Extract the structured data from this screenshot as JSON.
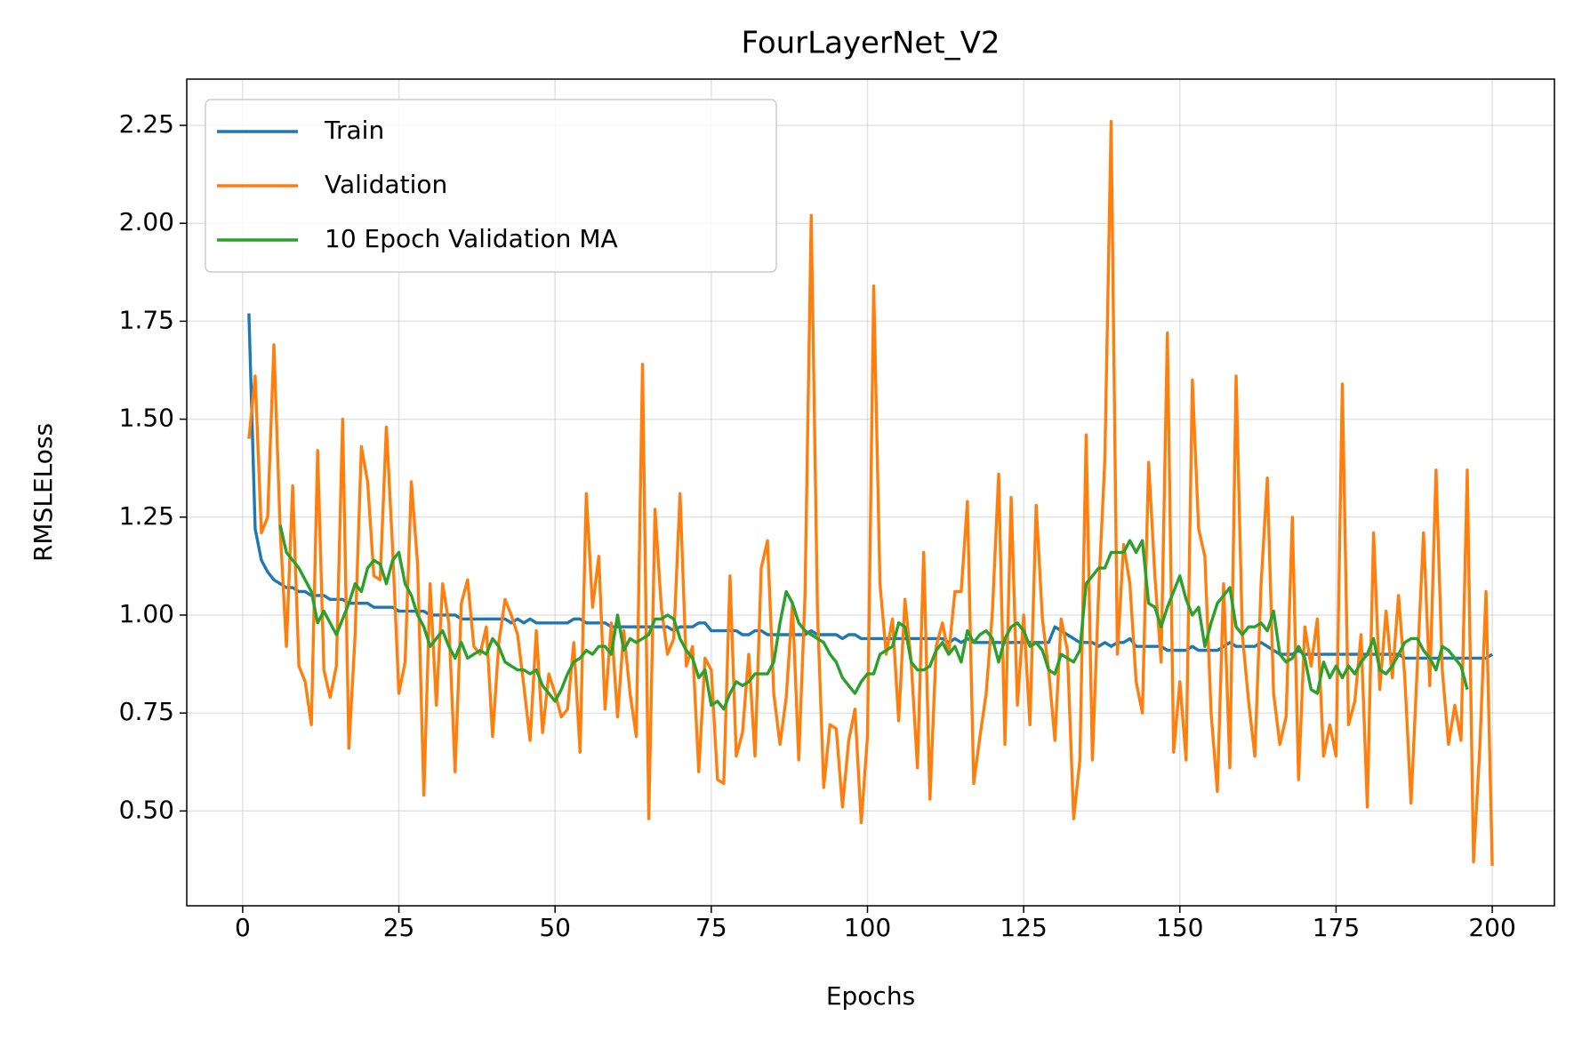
{
  "chart_data": {
    "type": "line",
    "title": "FourLayerNet_V2",
    "x_label": "Epochs",
    "y_label": "RMSLELoss",
    "x": [
      1,
      2,
      3,
      4,
      5,
      6,
      7,
      8,
      9,
      10,
      11,
      12,
      13,
      14,
      15,
      16,
      17,
      18,
      19,
      20,
      21,
      22,
      23,
      24,
      25,
      26,
      27,
      28,
      29,
      30,
      31,
      32,
      33,
      34,
      35,
      36,
      37,
      38,
      39,
      40,
      41,
      42,
      43,
      44,
      45,
      46,
      47,
      48,
      49,
      50,
      51,
      52,
      53,
      54,
      55,
      56,
      57,
      58,
      59,
      60,
      61,
      62,
      63,
      64,
      65,
      66,
      67,
      68,
      69,
      70,
      71,
      72,
      73,
      74,
      75,
      76,
      77,
      78,
      79,
      80,
      81,
      82,
      83,
      84,
      85,
      86,
      87,
      88,
      89,
      90,
      91,
      92,
      93,
      94,
      95,
      96,
      97,
      98,
      99,
      100,
      101,
      102,
      103,
      104,
      105,
      106,
      107,
      108,
      109,
      110,
      111,
      112,
      113,
      114,
      115,
      116,
      117,
      118,
      119,
      120,
      121,
      122,
      123,
      124,
      125,
      126,
      127,
      128,
      129,
      130,
      131,
      132,
      133,
      134,
      135,
      136,
      137,
      138,
      139,
      140,
      141,
      142,
      143,
      144,
      145,
      146,
      147,
      148,
      149,
      150,
      151,
      152,
      153,
      154,
      155,
      156,
      157,
      158,
      159,
      160,
      161,
      162,
      163,
      164,
      165,
      166,
      167,
      168,
      169,
      170,
      171,
      172,
      173,
      174,
      175,
      176,
      177,
      178,
      179,
      180,
      181,
      182,
      183,
      184,
      185,
      186,
      187,
      188,
      189,
      190,
      191,
      192,
      193,
      194,
      195,
      196,
      197,
      198,
      199,
      200
    ],
    "series": [
      {
        "name": "Train",
        "color": "#1f77b4",
        "values": [
          1.77,
          1.22,
          1.14,
          1.11,
          1.09,
          1.08,
          1.07,
          1.07,
          1.06,
          1.06,
          1.05,
          1.05,
          1.05,
          1.04,
          1.04,
          1.04,
          1.03,
          1.03,
          1.03,
          1.03,
          1.02,
          1.02,
          1.02,
          1.02,
          1.01,
          1.01,
          1.01,
          1.01,
          1.01,
          1.0,
          1.0,
          1.0,
          1.0,
          1.0,
          0.99,
          0.99,
          0.99,
          0.99,
          0.99,
          0.99,
          0.99,
          0.99,
          0.98,
          0.99,
          0.98,
          0.99,
          0.98,
          0.98,
          0.98,
          0.98,
          0.98,
          0.98,
          0.99,
          0.99,
          0.98,
          0.98,
          0.98,
          0.98,
          0.97,
          0.97,
          0.97,
          0.97,
          0.97,
          0.97,
          0.97,
          0.97,
          0.97,
          0.97,
          0.96,
          0.97,
          0.97,
          0.97,
          0.98,
          0.98,
          0.96,
          0.96,
          0.96,
          0.96,
          0.96,
          0.95,
          0.95,
          0.96,
          0.96,
          0.95,
          0.95,
          0.95,
          0.95,
          0.95,
          0.95,
          0.95,
          0.96,
          0.95,
          0.95,
          0.95,
          0.95,
          0.94,
          0.95,
          0.95,
          0.94,
          0.94,
          0.94,
          0.94,
          0.94,
          0.94,
          0.94,
          0.94,
          0.94,
          0.94,
          0.94,
          0.94,
          0.94,
          0.94,
          0.93,
          0.94,
          0.93,
          0.94,
          0.93,
          0.93,
          0.93,
          0.93,
          0.93,
          0.93,
          0.93,
          0.93,
          0.93,
          0.93,
          0.93,
          0.93,
          0.93,
          0.97,
          0.96,
          0.95,
          0.94,
          0.93,
          0.93,
          0.93,
          0.92,
          0.93,
          0.92,
          0.93,
          0.93,
          0.94,
          0.92,
          0.92,
          0.92,
          0.92,
          0.92,
          0.91,
          0.91,
          0.91,
          0.91,
          0.92,
          0.91,
          0.91,
          0.91,
          0.91,
          0.92,
          0.93,
          0.92,
          0.92,
          0.92,
          0.92,
          0.93,
          0.92,
          0.91,
          0.9,
          0.9,
          0.9,
          0.91,
          0.9,
          0.9,
          0.9,
          0.9,
          0.9,
          0.9,
          0.9,
          0.9,
          0.9,
          0.9,
          0.9,
          0.9,
          0.9,
          0.9,
          0.9,
          0.9,
          0.89,
          0.89,
          0.89,
          0.89,
          0.89,
          0.89,
          0.89,
          0.89,
          0.89,
          0.89,
          0.89,
          0.89,
          0.89,
          0.89,
          0.9
        ]
      },
      {
        "name": "Validation",
        "color": "#ff7f0e",
        "values": [
          1.45,
          1.61,
          1.21,
          1.25,
          1.69,
          1.22,
          0.92,
          1.33,
          0.87,
          0.83,
          0.72,
          1.42,
          0.86,
          0.79,
          0.87,
          1.5,
          0.66,
          0.95,
          1.43,
          1.34,
          1.1,
          1.09,
          1.48,
          1.17,
          0.8,
          0.88,
          1.34,
          1.13,
          0.54,
          1.08,
          0.77,
          1.08,
          0.98,
          0.6,
          1.03,
          1.09,
          0.92,
          0.9,
          0.97,
          0.69,
          0.93,
          1.04,
          1.0,
          0.95,
          0.82,
          0.68,
          0.96,
          0.7,
          0.85,
          0.8,
          0.74,
          0.76,
          0.93,
          0.65,
          1.31,
          1.02,
          1.15,
          0.76,
          0.98,
          0.74,
          0.96,
          0.8,
          0.69,
          1.64,
          0.48,
          1.27,
          1.02,
          0.9,
          0.94,
          1.31,
          0.87,
          0.92,
          0.6,
          0.89,
          0.86,
          0.58,
          0.57,
          1.1,
          0.64,
          0.7,
          0.9,
          0.64,
          1.12,
          1.19,
          0.8,
          0.67,
          0.79,
          1.03,
          0.63,
          1.05,
          2.02,
          1.01,
          0.56,
          0.72,
          0.71,
          0.51,
          0.68,
          0.76,
          0.47,
          0.69,
          1.84,
          1.08,
          0.9,
          0.99,
          0.73,
          1.04,
          0.88,
          0.61,
          1.16,
          0.53,
          0.92,
          0.98,
          0.9,
          1.06,
          1.06,
          1.29,
          0.57,
          0.69,
          0.8,
          1.01,
          1.36,
          0.67,
          1.3,
          0.77,
          1.0,
          0.72,
          1.28,
          0.99,
          0.86,
          0.68,
          0.99,
          0.91,
          0.48,
          0.63,
          1.46,
          0.63,
          1.06,
          1.4,
          2.26,
          0.9,
          1.18,
          1.08,
          0.83,
          0.75,
          1.39,
          1.1,
          0.88,
          1.72,
          0.65,
          0.83,
          0.63,
          1.6,
          1.22,
          1.15,
          0.75,
          0.55,
          1.08,
          0.61,
          1.61,
          0.95,
          0.78,
          0.64,
          1.08,
          1.35,
          0.8,
          0.67,
          0.74,
          1.25,
          0.58,
          0.97,
          0.87,
          0.99,
          0.64,
          0.72,
          0.64,
          1.59,
          0.72,
          0.78,
          0.95,
          0.51,
          1.21,
          0.81,
          1.01,
          0.84,
          1.05,
          0.84,
          0.52,
          0.87,
          1.21,
          0.82,
          1.37,
          0.86,
          0.67,
          0.77,
          0.68,
          1.37,
          0.37,
          0.66,
          1.06,
          0.36
        ]
      },
      {
        "name": "10 Epoch Validation MA",
        "color": "#2ca02c",
        "values": [
          null,
          null,
          null,
          null,
          null,
          1.23,
          1.16,
          1.14,
          1.12,
          1.09,
          1.06,
          0.98,
          1.01,
          0.98,
          0.95,
          0.99,
          1.03,
          1.08,
          1.06,
          1.12,
          1.14,
          1.13,
          1.08,
          1.14,
          1.16,
          1.08,
          1.05,
          1.0,
          0.97,
          0.92,
          0.94,
          0.96,
          0.92,
          0.89,
          0.93,
          0.89,
          0.9,
          0.91,
          0.9,
          0.94,
          0.92,
          0.88,
          0.87,
          0.86,
          0.86,
          0.85,
          0.86,
          0.82,
          0.8,
          0.78,
          0.81,
          0.85,
          0.88,
          0.89,
          0.91,
          0.9,
          0.92,
          0.92,
          0.9,
          1.0,
          0.91,
          0.94,
          0.93,
          0.94,
          0.95,
          0.99,
          0.99,
          1.0,
          0.99,
          0.94,
          0.91,
          0.89,
          0.84,
          0.86,
          0.77,
          0.78,
          0.76,
          0.8,
          0.83,
          0.82,
          0.83,
          0.85,
          0.85,
          0.85,
          0.88,
          0.98,
          1.06,
          1.03,
          0.98,
          0.96,
          0.95,
          0.94,
          0.93,
          0.9,
          0.88,
          0.84,
          0.82,
          0.8,
          0.83,
          0.85,
          0.85,
          0.9,
          0.91,
          0.92,
          0.98,
          0.97,
          0.88,
          0.86,
          0.86,
          0.87,
          0.91,
          0.93,
          0.9,
          0.92,
          0.88,
          0.96,
          0.93,
          0.95,
          0.96,
          0.94,
          0.88,
          0.94,
          0.97,
          0.98,
          0.96,
          0.92,
          0.93,
          0.91,
          0.86,
          0.85,
          0.9,
          0.89,
          0.88,
          0.91,
          1.08,
          1.1,
          1.12,
          1.12,
          1.16,
          1.16,
          1.16,
          1.19,
          1.16,
          1.19,
          1.03,
          1.02,
          0.97,
          1.02,
          1.06,
          1.1,
          1.04,
          1.0,
          1.02,
          0.92,
          0.98,
          1.03,
          1.05,
          1.07,
          0.97,
          0.95,
          0.97,
          0.97,
          0.98,
          0.96,
          1.01,
          0.9,
          0.88,
          0.89,
          0.92,
          0.89,
          0.81,
          0.8,
          0.88,
          0.84,
          0.87,
          0.84,
          0.87,
          0.85,
          0.88,
          0.9,
          0.94,
          0.86,
          0.85,
          0.87,
          0.9,
          0.93,
          0.94,
          0.94,
          0.91,
          0.89,
          0.86,
          0.92,
          0.91,
          0.89,
          0.87,
          0.81,
          null,
          null,
          null,
          null
        ]
      }
    ],
    "xlim": [
      -8.95,
      209.95
    ],
    "ylim": [
      0.258,
      2.368
    ],
    "xticks": [
      0,
      25,
      50,
      75,
      100,
      125,
      150,
      175,
      200
    ],
    "yticks": [
      {
        "value": 0.5,
        "label": "0.50"
      },
      0.75,
      {
        "value": 1,
        "label": "1.00"
      },
      1.25,
      {
        "value": 1.5,
        "label": "1.50"
      },
      1.75,
      {
        "value": 2,
        "label": "2.00"
      },
      2.25
    ],
    "grid": true,
    "legend": "upper left"
  }
}
